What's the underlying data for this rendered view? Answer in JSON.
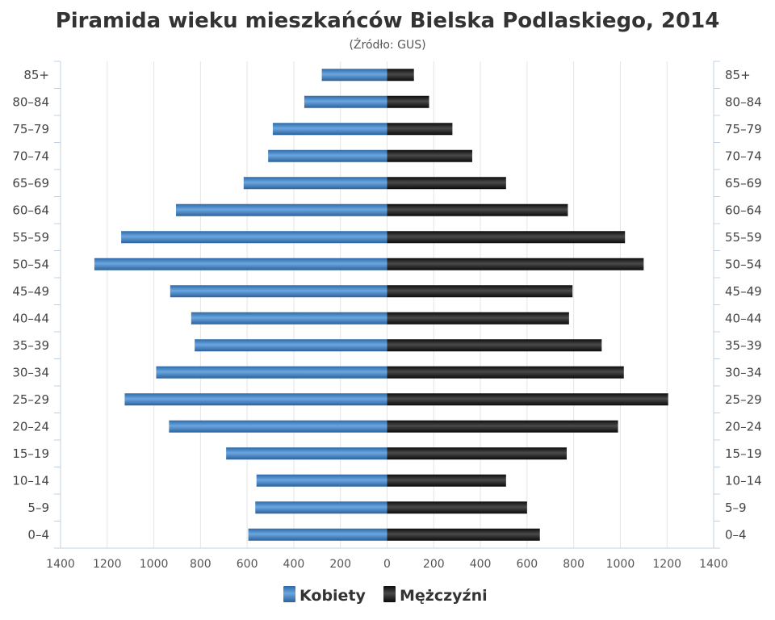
{
  "chart_data": {
    "type": "bar",
    "orientation": "horizontal-pyramid",
    "title": "Piramida wieku mieszkańców Bielska Podlaskiego, 2014",
    "subtitle": "(Źródło: GUS)",
    "categories": [
      "85+",
      "80–84",
      "75–79",
      "70–74",
      "65–69",
      "60–64",
      "55–59",
      "50–54",
      "45–49",
      "40–44",
      "35–39",
      "30–34",
      "25–29",
      "20–24",
      "15–19",
      "10–14",
      "5–9",
      "0–4"
    ],
    "series": [
      {
        "name": "Kobiety",
        "color": "#3f7fc0",
        "side": "left",
        "values": [
          280,
          355,
          490,
          510,
          615,
          905,
          1140,
          1255,
          930,
          840,
          825,
          990,
          1125,
          935,
          690,
          560,
          565,
          595
        ]
      },
      {
        "name": "Mężczyźni",
        "color": "#1a1a1a",
        "side": "right",
        "values": [
          115,
          180,
          280,
          365,
          510,
          775,
          1020,
          1100,
          795,
          780,
          920,
          1015,
          1205,
          990,
          770,
          510,
          600,
          655
        ]
      }
    ],
    "x_ticks": [
      "1400",
      "1200",
      "1000",
      "800",
      "600",
      "400",
      "200",
      "0",
      "200",
      "400",
      "600",
      "800",
      "1000",
      "1200",
      "1400"
    ],
    "xlim": [
      -1400,
      1400
    ],
    "grid": true,
    "legend_position": "bottom-center"
  },
  "legend": {
    "items": [
      {
        "label": "Kobiety",
        "color": "#3f7fc0"
      },
      {
        "label": "Mężczyźni",
        "color": "#1a1a1a"
      }
    ]
  }
}
